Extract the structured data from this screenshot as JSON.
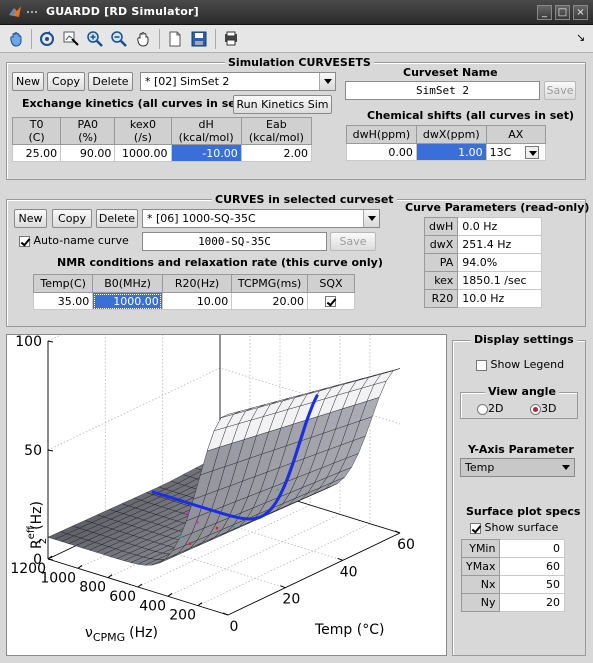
{
  "window": {
    "title": "GUARDD [RD Simulator]",
    "buttons": [
      "_",
      "□",
      "×"
    ]
  },
  "toolbar": {
    "icons": [
      "hand-tool-icon",
      "rotate-3d-icon",
      "data-cursor-icon",
      "zoom-in-icon",
      "zoom-out-icon",
      "pan-icon",
      "new-figure-icon",
      "save-icon",
      "print-icon"
    ],
    "corner_arrow": "↘"
  },
  "sim_curvesets": {
    "title": "Simulation CURVESETS",
    "new_label": "New",
    "copy_label": "Copy",
    "delete_label": "Delete",
    "selected": "* [02] SimSet 2",
    "exchange_label": "Exchange kinetics (all curves in set)",
    "run_label": "Run Kinetics Sim",
    "kinetics_headers": [
      [
        "T0",
        "(C)"
      ],
      [
        "PA0",
        "(%)"
      ],
      [
        "kex0",
        "(/s)"
      ],
      [
        "dH",
        "(kcal/mol)"
      ],
      [
        "Eab",
        "(kcal/mol)"
      ]
    ],
    "kinetics_values": [
      "25.00",
      "90.00",
      "1000.00",
      "-10.00",
      "2.00"
    ],
    "curveset_name_label": "Curveset Name",
    "curveset_name": "SimSet 2",
    "save_label": "Save",
    "chem_shift_label": "Chemical shifts (all curves in set)",
    "chem_headers": [
      "dwH(ppm)",
      "dwX(ppm)",
      "AX"
    ],
    "chem_values": [
      "0.00",
      "1.00",
      "13C"
    ]
  },
  "curves": {
    "title": "CURVES in selected curveset",
    "new_label": "New",
    "copy_label": "Copy",
    "delete_label": "Delete",
    "selected": "* [06] 1000-SQ-35C",
    "autoname_label": "Auto-name curve",
    "curve_name": "1000-SQ-35C",
    "save_label": "Save",
    "nmr_label": "NMR conditions and relaxation rate (this curve only)",
    "nmr_headers": [
      "Temp(C)",
      "B0(MHz)",
      "R20(Hz)",
      "TCPMG(ms)",
      "SQX"
    ],
    "nmr_values": [
      "35.00",
      "1000.00",
      "10.00",
      "20.00"
    ]
  },
  "curve_params": {
    "title": "Curve Parameters (read-only)",
    "rows": [
      {
        "key": "dwH",
        "value": "0.0 Hz"
      },
      {
        "key": "dwX",
        "value": "251.4 Hz"
      },
      {
        "key": "PA",
        "value": "94.0%"
      },
      {
        "key": "kex",
        "value": "1850.1 /sec"
      },
      {
        "key": "R20",
        "value": "10.0 Hz"
      }
    ]
  },
  "display": {
    "title": "Display settings",
    "show_legend_label": "Show Legend",
    "view_angle_label": "View angle",
    "view_2d": "2D",
    "view_3d": "3D",
    "yaxis_label": "Y-Axis Parameter",
    "yaxis_value": "Temp",
    "surface_specs_label": "Surface plot specs",
    "show_surface_label": "Show surface",
    "specs": [
      {
        "key": "YMin",
        "value": "0"
      },
      {
        "key": "YMax",
        "value": "60"
      },
      {
        "key": "Nx",
        "value": "50"
      },
      {
        "key": "Ny",
        "value": "20"
      }
    ]
  },
  "chart_data": {
    "type": "surface",
    "zlabel_main": "R",
    "zlabel_sup": "eff",
    "zlabel_sub": "2",
    "zlabel_unit": "(Hz)",
    "xlabel_main": "ν",
    "xlabel_sub": "CPMG",
    "xlabel_unit": "(Hz)",
    "ylabel": "Temp (°C)",
    "x_ticks": [
      "200",
      "400",
      "600",
      "800",
      "1000",
      "1200"
    ],
    "y_ticks": [
      "0",
      "20",
      "40",
      "60"
    ],
    "z_ticks": [
      "0",
      "50",
      "100"
    ],
    "xlim": [
      0,
      1200
    ],
    "ylim": [
      0,
      60
    ],
    "zlim": [
      0,
      100
    ]
  }
}
